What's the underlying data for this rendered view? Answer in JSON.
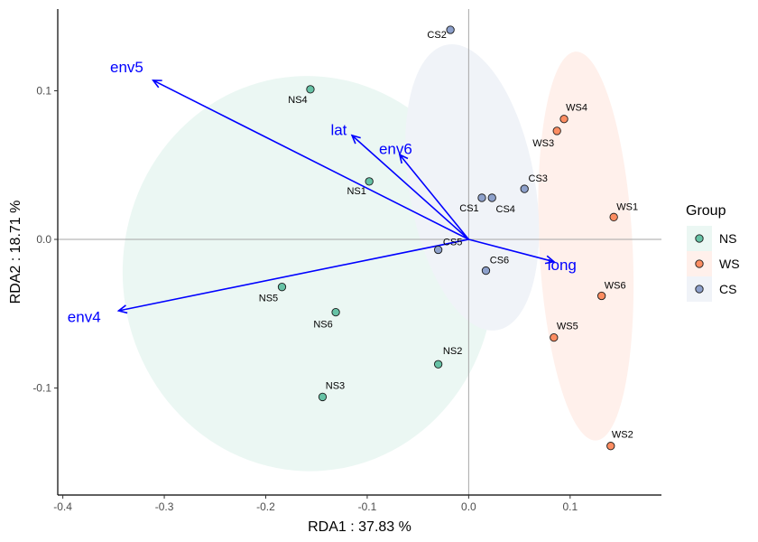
{
  "chart_data": {
    "type": "scatter",
    "xlabel": "RDA1 :  37.83 %",
    "ylabel": "RDA2 :  18.71 %",
    "xlim": [
      -0.405,
      0.19
    ],
    "ylim": [
      -0.172,
      0.155
    ],
    "x_ticks": [
      -0.4,
      -0.3,
      -0.2,
      -0.1,
      0.0,
      0.1
    ],
    "x_tick_labels": [
      "-0.4",
      "-0.3",
      "-0.2",
      "-0.1",
      "0.0",
      "0.1"
    ],
    "y_ticks": [
      -0.1,
      0.0,
      0.1
    ],
    "y_tick_labels": [
      "-0.1",
      "0.0",
      "0.1"
    ],
    "grid": false,
    "reference_lines": [
      0,
      0
    ],
    "legend": {
      "title": "Group",
      "placement": "right",
      "entries": [
        {
          "name": "NS",
          "color": "#66c2a5"
        },
        {
          "name": "WS",
          "color": "#fc8d62"
        },
        {
          "name": "CS",
          "color": "#8da0cb"
        }
      ]
    },
    "series": [
      {
        "name": "NS",
        "color": "#66c2a5",
        "ellipse": {
          "cx": -0.158,
          "cy": -0.023,
          "rx": 0.183,
          "ry": 0.133,
          "tilt_deg": -4
        },
        "points": [
          {
            "label": "NS1",
            "x": -0.098,
            "y": 0.039
          },
          {
            "label": "NS2",
            "x": -0.03,
            "y": -0.084
          },
          {
            "label": "NS3",
            "x": -0.144,
            "y": -0.106
          },
          {
            "label": "NS4",
            "x": -0.156,
            "y": 0.101
          },
          {
            "label": "NS5",
            "x": -0.184,
            "y": -0.032
          },
          {
            "label": "NS6",
            "x": -0.131,
            "y": -0.049
          }
        ]
      },
      {
        "name": "WS",
        "color": "#fc8d62",
        "ellipse": {
          "cx": 0.1155,
          "cy": -0.0045,
          "rx": 0.046,
          "ry": 0.131,
          "tilt_deg": -3
        },
        "points": [
          {
            "label": "WS1",
            "x": 0.143,
            "y": 0.015
          },
          {
            "label": "WS2",
            "x": 0.14,
            "y": -0.139
          },
          {
            "label": "WS3",
            "x": 0.087,
            "y": 0.073
          },
          {
            "label": "WS4",
            "x": 0.094,
            "y": 0.081
          },
          {
            "label": "WS5",
            "x": 0.084,
            "y": -0.066
          },
          {
            "label": "WS6",
            "x": 0.131,
            "y": -0.038
          }
        ]
      },
      {
        "name": "CS",
        "color": "#8da0cb",
        "ellipse": {
          "cx": 0.0035,
          "cy": 0.035,
          "rx": 0.062,
          "ry": 0.0975,
          "tilt_deg": -10
        },
        "points": [
          {
            "label": "CS1",
            "x": 0.013,
            "y": 0.028
          },
          {
            "label": "CS2",
            "x": -0.018,
            "y": 0.141
          },
          {
            "label": "CS3",
            "x": 0.055,
            "y": 0.034
          },
          {
            "label": "CS4",
            "x": 0.023,
            "y": 0.028
          },
          {
            "label": "CS5",
            "x": -0.03,
            "y": -0.007
          },
          {
            "label": "CS6",
            "x": 0.017,
            "y": -0.021
          }
        ]
      }
    ],
    "vectors": [
      {
        "label": "env5",
        "x": -0.311,
        "y": 0.107,
        "label_x": -0.337,
        "label_y": 0.116
      },
      {
        "label": "lat",
        "x": -0.115,
        "y": 0.07,
        "label_x": -0.128,
        "label_y": 0.074
      },
      {
        "label": "env6",
        "x": -0.068,
        "y": 0.057,
        "label_x": -0.072,
        "label_y": 0.061
      },
      {
        "label": "long",
        "x": 0.084,
        "y": -0.015,
        "label_x": 0.092,
        "label_y": -0.017
      },
      {
        "label": "env4",
        "x": -0.345,
        "y": -0.048,
        "label_x": -0.379,
        "label_y": -0.052
      }
    ],
    "vector_color": "#0000ff"
  }
}
